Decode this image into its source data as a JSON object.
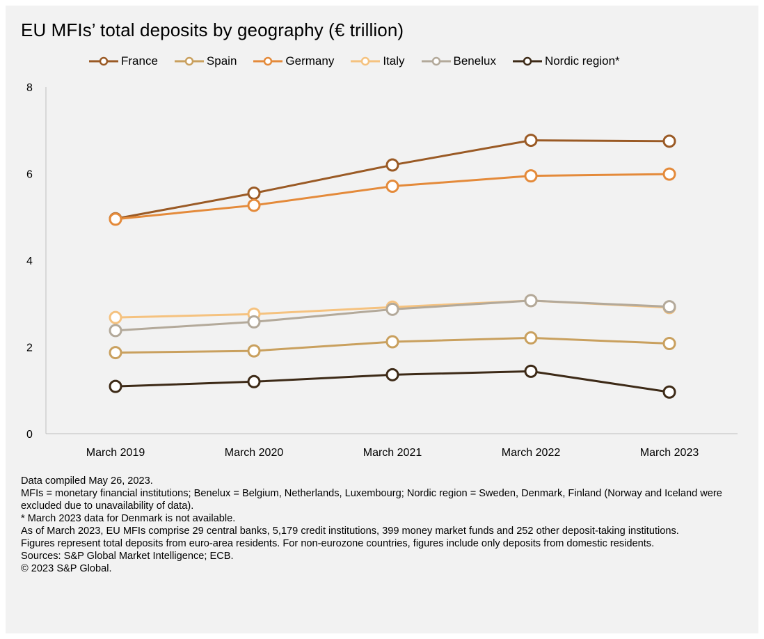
{
  "title": "EU MFIs’ total deposits by geography (€ trillion)",
  "chart_data": {
    "type": "line",
    "title": "EU MFIs’ total deposits by geography (€ trillion)",
    "xlabel": "",
    "ylabel": "",
    "categories": [
      "March 2019",
      "March 2020",
      "March 2021",
      "March 2022",
      "March 2023"
    ],
    "ylim": [
      0,
      8
    ],
    "yticks": [
      "0",
      "2",
      "4",
      "6",
      "8"
    ],
    "legend_position": "top",
    "series": [
      {
        "name": "France",
        "color": "#9a5a25",
        "values": [
          4.96,
          5.55,
          6.2,
          6.77,
          6.75
        ]
      },
      {
        "name": "Spain",
        "color": "#c9a05e",
        "values": [
          1.87,
          1.91,
          2.12,
          2.21,
          2.08
        ]
      },
      {
        "name": "Germany",
        "color": "#e48a3a",
        "values": [
          4.95,
          5.27,
          5.71,
          5.95,
          5.99
        ]
      },
      {
        "name": "Italy",
        "color": "#f5c27f",
        "values": [
          2.68,
          2.76,
          2.92,
          3.07,
          2.91
        ]
      },
      {
        "name": "Benelux",
        "color": "#b3a99a",
        "values": [
          2.38,
          2.58,
          2.87,
          3.07,
          2.93
        ]
      },
      {
        "name": "Nordic region*",
        "color": "#3d2a17",
        "values": [
          1.09,
          1.2,
          1.36,
          1.44,
          0.96
        ]
      }
    ]
  },
  "notes": [
    "Data compiled May 26, 2023.",
    "MFIs = monetary financial institutions; Benelux = Belgium, Netherlands, Luxembourg; Nordic region = Sweden, Denmark, Finland (Norway and Iceland were excluded due to unavailability of data).",
    "* March 2023 data for Denmark is not available.",
    "As of March 2023, EU MFIs comprise 29 central banks, 5,179 credit institutions, 399 money market funds and 252 other deposit-taking institutions.",
    "Figures represent total deposits from euro-area residents. For non-eurozone countries, figures include only deposits from domestic residents.",
    "Sources: S&P Global Market Intelligence; ECB.",
    "© 2023 S&P Global."
  ]
}
